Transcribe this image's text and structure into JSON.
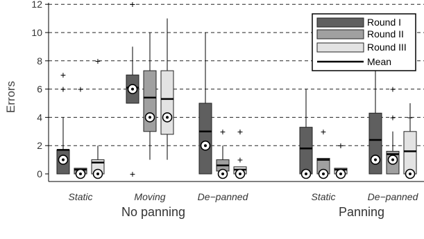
{
  "chart_data": {
    "type": "box",
    "ylabel": "Errors",
    "ylim": [
      -0.5,
      13.5
    ],
    "yticks": [
      0,
      2,
      4,
      6,
      8,
      10,
      12
    ],
    "grid": "horizontal-dashed",
    "legend_position": "top-right",
    "groups": [
      {
        "label": "No panning",
        "subgroups": [
          "Static",
          "Moving",
          "De−panned"
        ]
      },
      {
        "label": "Panning",
        "subgroups": [
          "Static",
          "De−panned"
        ]
      }
    ],
    "series": [
      {
        "name": "Round I",
        "color": "#5f5f5f"
      },
      {
        "name": "Round II",
        "color": "#a0a0a0"
      },
      {
        "name": "Round III",
        "color": "#e3e3e3"
      }
    ],
    "mean_label": "Mean",
    "boxes": [
      {
        "group": "No panning",
        "condition": "Static",
        "round": "Round I",
        "whisker_low": 0,
        "q1": 0,
        "median": 1.7,
        "q3": 1.7,
        "whisker_high": 4,
        "mean": 1.0,
        "outliers": [
          6,
          6,
          7
        ]
      },
      {
        "group": "No panning",
        "condition": "Static",
        "round": "Round II",
        "whisker_low": 0,
        "q1": 0,
        "median": 0.3,
        "q3": 0.4,
        "whisker_high": 0.4,
        "mean": 0.0,
        "outliers": [
          6
        ]
      },
      {
        "group": "No panning",
        "condition": "Static",
        "round": "Round III",
        "whisker_low": 0,
        "q1": 0,
        "median": 0.8,
        "q3": 1.0,
        "whisker_high": 2,
        "mean": 0.0,
        "outliers": [
          8
        ]
      },
      {
        "group": "No panning",
        "condition": "Moving",
        "round": "Round I",
        "whisker_low": 5,
        "q1": 5,
        "median": 6.1,
        "q3": 7,
        "whisker_high": 9,
        "mean": 6.0,
        "outliers": [
          0,
          12
        ]
      },
      {
        "group": "No panning",
        "condition": "Moving",
        "round": "Round II",
        "whisker_low": 1,
        "q1": 3,
        "median": 5.4,
        "q3": 7.3,
        "whisker_high": 10,
        "mean": 4.0,
        "outliers": []
      },
      {
        "group": "No panning",
        "condition": "Moving",
        "round": "Round III",
        "whisker_low": 1,
        "q1": 2.8,
        "median": 5.3,
        "q3": 7.3,
        "whisker_high": 11,
        "mean": 4.0,
        "outliers": []
      },
      {
        "group": "No panning",
        "condition": "De−panned",
        "round": "Round I",
        "whisker_low": 0,
        "q1": 0,
        "median": 3.0,
        "q3": 5,
        "whisker_high": 10,
        "mean": 2.0,
        "outliers": []
      },
      {
        "group": "No panning",
        "condition": "De−panned",
        "round": "Round II",
        "whisker_low": 0,
        "q1": 0.2,
        "median": 0.6,
        "q3": 1,
        "whisker_high": 2,
        "mean": 0.0,
        "outliers": [
          3
        ]
      },
      {
        "group": "No panning",
        "condition": "De−panned",
        "round": "Round III",
        "whisker_low": 0,
        "q1": 0,
        "median": 0.3,
        "q3": 0.5,
        "whisker_high": 0.5,
        "mean": 0.0,
        "outliers": [
          1,
          3,
          3
        ]
      },
      {
        "group": "Panning",
        "condition": "Static",
        "round": "Round I",
        "whisker_low": 0,
        "q1": 0,
        "median": 1.8,
        "q3": 3.3,
        "whisker_high": 6,
        "mean": 0.0,
        "outliers": []
      },
      {
        "group": "Panning",
        "condition": "Static",
        "round": "Round II",
        "whisker_low": 0,
        "q1": 0,
        "median": 1.0,
        "q3": 1.1,
        "whisker_high": 1.1,
        "mean": 0.0,
        "outliers": [
          3
        ]
      },
      {
        "group": "Panning",
        "condition": "Static",
        "round": "Round III",
        "whisker_low": 0,
        "q1": 0,
        "median": 0.3,
        "q3": 0.4,
        "whisker_high": 0.4,
        "mean": 0.0,
        "outliers": [
          2,
          2
        ]
      },
      {
        "group": "Panning",
        "condition": "De−panned",
        "round": "Round I",
        "whisker_low": 0,
        "q1": 0,
        "median": 2.4,
        "q3": 4.3,
        "whisker_high": 9,
        "mean": 1.0,
        "outliers": []
      },
      {
        "group": "Panning",
        "condition": "De−panned",
        "round": "Round II",
        "whisker_low": 0,
        "q1": 0,
        "median": 1.4,
        "q3": 1.6,
        "whisker_high": 3,
        "mean": 1.0,
        "outliers": [
          4,
          6
        ]
      },
      {
        "group": "Panning",
        "condition": "De−panned",
        "round": "Round III",
        "whisker_low": 0,
        "q1": 0,
        "median": 1.6,
        "q3": 3.0,
        "whisker_high": 5,
        "mean": 0.0,
        "outliers": [
          4,
          8
        ]
      }
    ]
  }
}
